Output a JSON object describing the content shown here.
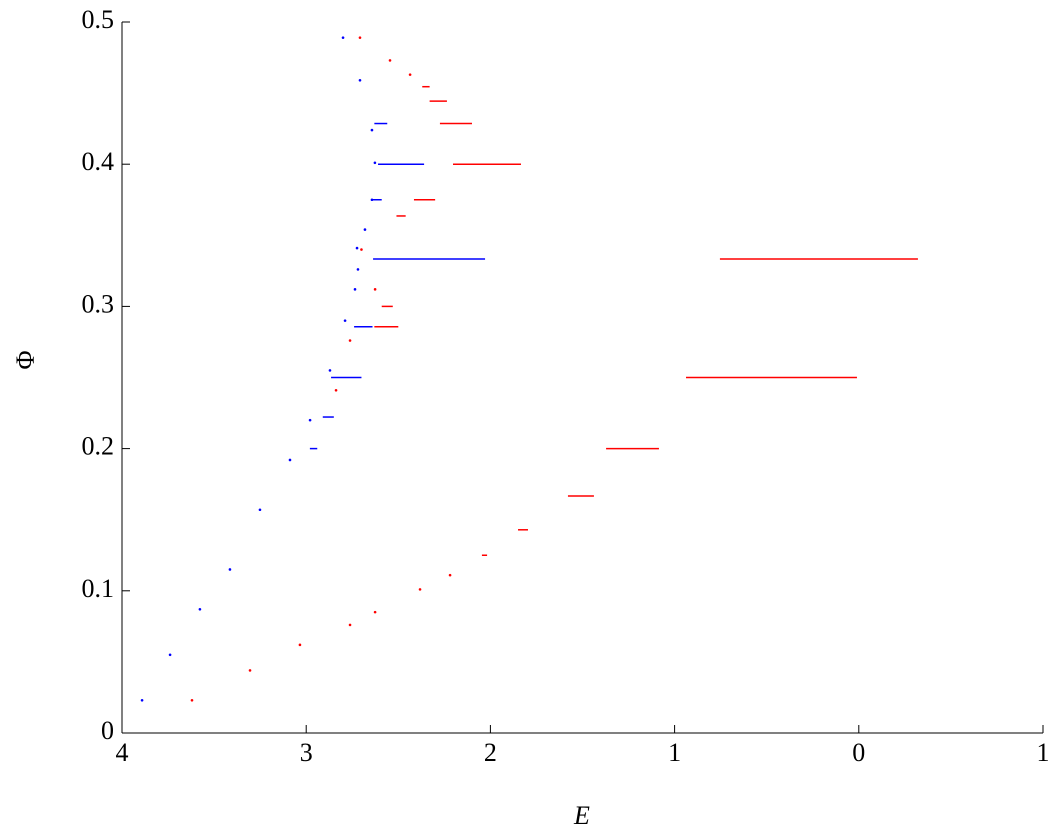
{
  "chart_data": {
    "type": "scatter",
    "x_label": "E",
    "y_label": "Φ",
    "xlim": [
      -4,
      1
    ],
    "xticks": [
      {
        "value": -4,
        "label": "4"
      },
      {
        "value": -3,
        "label": "3"
      },
      {
        "value": -2,
        "label": "2"
      },
      {
        "value": -1,
        "label": "1"
      },
      0,
      {
        "value": 1,
        "label": "1"
      }
    ],
    "ylim": [
      0,
      0.5
    ],
    "yticks": [
      0,
      0.1,
      0.2,
      0.3,
      0.4,
      0.5
    ],
    "grid": false,
    "series": [
      {
        "color": "#0000ff",
        "x": [
          -3.891,
          -3.739,
          -3.577,
          -3.414,
          -3.251,
          -3.088,
          -2.979,
          -2.871,
          -2.789,
          -2.735,
          -2.719,
          -2.8,
          -2.708,
          -2.643,
          -2.627,
          -2.643,
          -2.681,
          -2.724
        ],
        "y": [
          0.023,
          0.055,
          0.087,
          0.115,
          0.157,
          0.192,
          0.22,
          0.255,
          0.29,
          0.312,
          0.326,
          0.489,
          0.459,
          0.424,
          0.401,
          0.375,
          0.354,
          0.341
        ]
      },
      {
        "color": "#ff0000",
        "x": [
          -3.62,
          -3.305,
          -3.034,
          -2.762,
          -2.626,
          -2.382,
          -2.219,
          -2.708,
          -2.545,
          -2.436,
          -2.838,
          -2.762,
          -2.7,
          -2.626
        ],
        "y": [
          0.023,
          0.044,
          0.062,
          0.076,
          0.085,
          0.101,
          0.111,
          0.489,
          0.473,
          0.463,
          0.241,
          0.276,
          0.34,
          0.312
        ]
      }
    ],
    "segments": [
      {
        "color": "#0000ff",
        "y": [
          0.3333,
          0.4,
          0.25,
          0.2857,
          0.4286,
          0.375,
          0.2222,
          0.2
        ],
        "x_start": [
          -2.637,
          -2.61,
          -2.865,
          -2.74,
          -2.63,
          -2.64,
          -2.91,
          -2.98
        ],
        "x_end": [
          -2.029,
          -2.36,
          -2.7,
          -2.64,
          -2.56,
          -2.59,
          -2.85,
          -2.94
        ]
      },
      {
        "color": "#ff0000",
        "y": [
          0.3333,
          0.25,
          0.2,
          0.1667,
          0.1429,
          0.125,
          0.4,
          0.375,
          0.4286,
          0.4444,
          0.2857,
          0.3,
          0.3636,
          0.4545
        ],
        "x_start": [
          -0.754,
          -0.938,
          -1.372,
          -1.579,
          -1.85,
          -2.046,
          -2.203,
          -2.415,
          -2.274,
          -2.33,
          -2.63,
          -2.59,
          -2.51,
          -2.37
        ],
        "x_end": [
          0.321,
          -0.01,
          -1.085,
          -1.438,
          -1.796,
          -2.018,
          -1.834,
          -2.3,
          -2.1,
          -2.236,
          -2.5,
          -2.53,
          -2.46,
          -2.33
        ]
      }
    ]
  }
}
